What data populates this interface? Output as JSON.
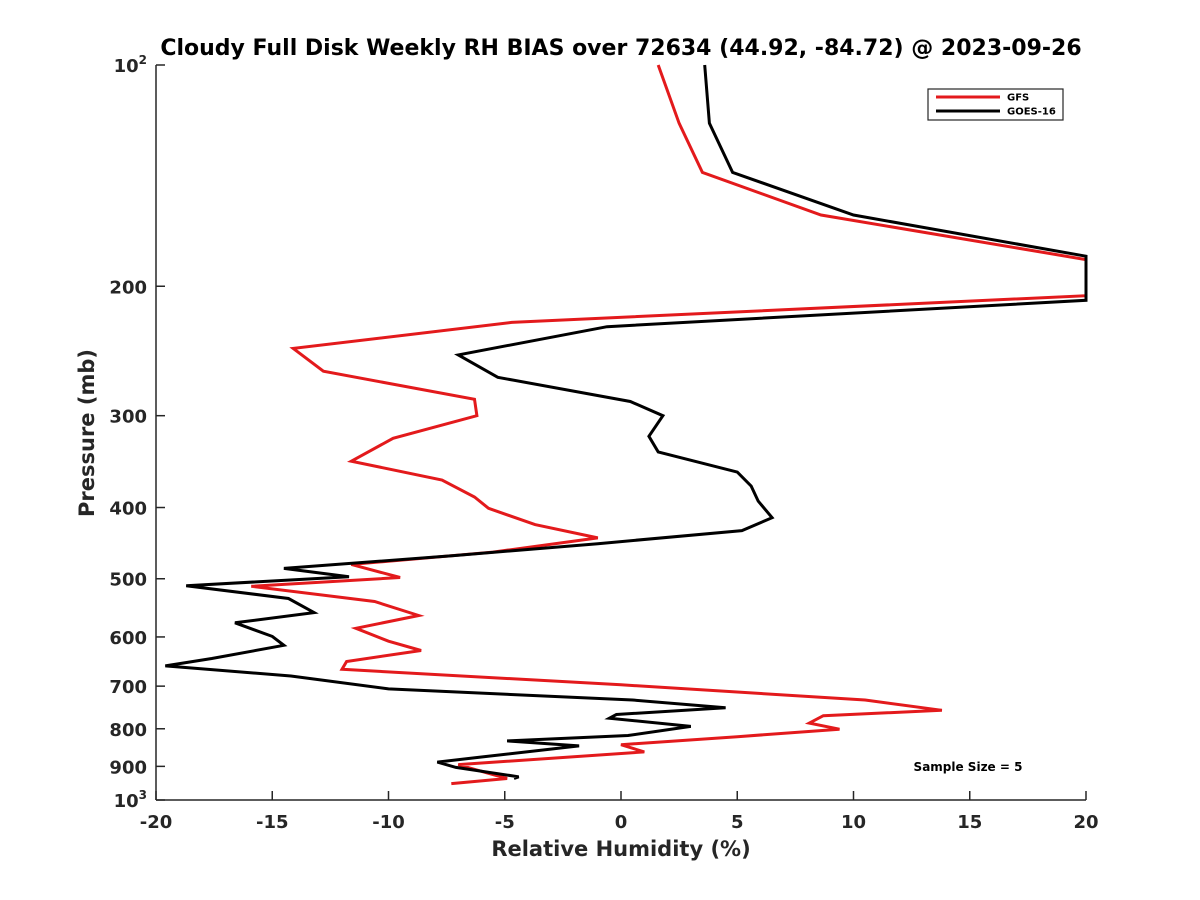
{
  "chart_data": {
    "type": "line",
    "title": "Cloudy Full Disk Weekly RH BIAS over 72634 (44.92, -84.72) @ 2023-09-26",
    "xlabel": "Relative Humidity (%)",
    "ylabel": "Pressure (mb)",
    "xlim": [
      -20,
      20
    ],
    "ylim": [
      100,
      1000
    ],
    "y_scale": "log",
    "y_reversed": true,
    "grid": false,
    "legend_position": "top-right",
    "xticks": [
      -20,
      -15,
      -10,
      -5,
      0,
      5,
      10,
      15,
      20
    ],
    "xtick_labels": [
      "-20",
      "-15",
      "-10",
      "-5",
      "0",
      "5",
      "10",
      "15",
      "20"
    ],
    "yticks": [
      {
        "value": 100,
        "base": "10",
        "sup": "2"
      },
      {
        "value": 200,
        "base": "200",
        "sup": ""
      },
      {
        "value": 300,
        "base": "300",
        "sup": ""
      },
      {
        "value": 400,
        "base": "400",
        "sup": ""
      },
      {
        "value": 500,
        "base": "500",
        "sup": ""
      },
      {
        "value": 600,
        "base": "600",
        "sup": ""
      },
      {
        "value": 700,
        "base": "700",
        "sup": ""
      },
      {
        "value": 800,
        "base": "800",
        "sup": ""
      },
      {
        "value": 900,
        "base": "900",
        "sup": ""
      },
      {
        "value": 1000,
        "base": "10",
        "sup": "3"
      }
    ],
    "annotation": "Sample Size = 5",
    "series": [
      {
        "name": "GFS",
        "color": "#e31a1c",
        "points": [
          [
            1.6,
            100
          ],
          [
            2.5,
            120
          ],
          [
            3.5,
            140
          ],
          [
            8.6,
            160
          ],
          [
            20.0,
            184
          ],
          [
            20.0,
            206
          ],
          [
            -4.7,
            224
          ],
          [
            -14.1,
            243
          ],
          [
            -12.8,
            261
          ],
          [
            -6.3,
            285
          ],
          [
            -6.2,
            300
          ],
          [
            -9.8,
            322
          ],
          [
            -11.6,
            346
          ],
          [
            -7.7,
            367
          ],
          [
            -6.3,
            387
          ],
          [
            -5.7,
            401
          ],
          [
            -3.7,
            422
          ],
          [
            -1.0,
            440
          ],
          [
            -5.5,
            460
          ],
          [
            -11.6,
            478
          ],
          [
            -9.5,
            498
          ],
          [
            -15.9,
            512
          ],
          [
            -10.6,
            537
          ],
          [
            -8.7,
            561
          ],
          [
            -11.4,
            584
          ],
          [
            -10.0,
            608
          ],
          [
            -8.6,
            626
          ],
          [
            -11.8,
            648
          ],
          [
            -12.0,
            664
          ],
          [
            0.0,
            697
          ],
          [
            10.5,
            731
          ],
          [
            13.8,
            755
          ],
          [
            8.7,
            768
          ],
          [
            8.1,
            786
          ],
          [
            9.4,
            801
          ],
          [
            5.0,
            820
          ],
          [
            0.0,
            841
          ],
          [
            1.0,
            860
          ],
          [
            -7.0,
            895
          ],
          [
            -6.5,
            905
          ],
          [
            -4.9,
            935
          ],
          [
            -7.3,
            950
          ]
        ]
      },
      {
        "name": "GOES-16",
        "color": "#000000",
        "points": [
          [
            3.6,
            100
          ],
          [
            3.8,
            120
          ],
          [
            4.8,
            140
          ],
          [
            10.0,
            160
          ],
          [
            20.0,
            182
          ],
          [
            20.0,
            209
          ],
          [
            -0.6,
            227
          ],
          [
            -7.0,
            248
          ],
          [
            -5.3,
            266
          ],
          [
            0.4,
            287
          ],
          [
            1.8,
            300
          ],
          [
            1.2,
            320
          ],
          [
            1.6,
            336
          ],
          [
            5.0,
            358
          ],
          [
            5.6,
            374
          ],
          [
            5.9,
            392
          ],
          [
            6.5,
            413
          ],
          [
            5.2,
            430
          ],
          [
            -1.0,
            448
          ],
          [
            -7.2,
            465
          ],
          [
            -14.5,
            484
          ],
          [
            -11.7,
            497
          ],
          [
            -18.7,
            511
          ],
          [
            -14.3,
            532
          ],
          [
            -13.2,
            556
          ],
          [
            -16.6,
            574
          ],
          [
            -15.0,
            599
          ],
          [
            -14.5,
            616
          ],
          [
            -17.6,
            642
          ],
          [
            -19.6,
            657
          ],
          [
            -14.2,
            678
          ],
          [
            -10.0,
            706
          ],
          [
            0.5,
            731
          ],
          [
            4.5,
            749
          ],
          [
            -0.2,
            765
          ],
          [
            -0.5,
            774
          ],
          [
            3.0,
            794
          ],
          [
            0.3,
            817
          ],
          [
            -4.9,
            831
          ],
          [
            -1.8,
            844
          ],
          [
            -6.0,
            874
          ],
          [
            -7.9,
            888
          ],
          [
            -7.1,
            903
          ],
          [
            -4.4,
            930
          ],
          [
            -4.6,
            935
          ]
        ]
      }
    ]
  }
}
